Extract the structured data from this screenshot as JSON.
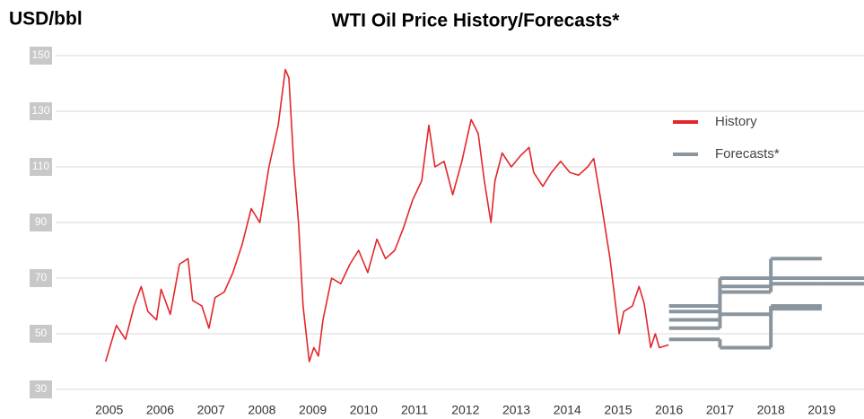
{
  "chart_data": {
    "type": "line",
    "title": "WTI Oil Price History/Forecasts*",
    "ylabel": "USD/bbl",
    "ylim": [
      30,
      150
    ],
    "yticks": [
      30,
      50,
      70,
      90,
      110,
      130,
      150
    ],
    "xlim": [
      2004.3,
      2019.83
    ],
    "xticks": [
      2005,
      2006,
      2007,
      2008,
      2009,
      2010,
      2011,
      2012,
      2013,
      2014,
      2015,
      2016,
      2017,
      2018,
      2019
    ],
    "grid": true,
    "legend": "upper right",
    "history": {
      "name": "History",
      "color": "#e3262b",
      "x": [
        2004.93,
        2005.14,
        2005.32,
        2005.49,
        2005.63,
        2005.76,
        2005.93,
        2006.02,
        2006.2,
        2006.38,
        2006.55,
        2006.64,
        2006.82,
        2006.96,
        2007.08,
        2007.26,
        2007.43,
        2007.61,
        2007.79,
        2007.96,
        2008.14,
        2008.32,
        2008.46,
        2008.53,
        2008.63,
        2008.72,
        2008.81,
        2008.93,
        2009.02,
        2009.11,
        2009.2,
        2009.37,
        2009.55,
        2009.73,
        2009.9,
        2010.08,
        2010.26,
        2010.43,
        2010.61,
        2010.78,
        2010.96,
        2011.14,
        2011.28,
        2011.4,
        2011.58,
        2011.75,
        2011.93,
        2012.11,
        2012.25,
        2012.37,
        2012.5,
        2012.58,
        2012.72,
        2012.9,
        2013.08,
        2013.25,
        2013.34,
        2013.52,
        2013.69,
        2013.87,
        2014.05,
        2014.22,
        2014.4,
        2014.52,
        2014.66,
        2014.84,
        2015.02,
        2015.11,
        2015.28,
        2015.41,
        2015.51,
        2015.64,
        2015.73,
        2015.81,
        2015.99
      ],
      "values": [
        40,
        53,
        48,
        60,
        67,
        58,
        55,
        66,
        57,
        75,
        77,
        62,
        60,
        52,
        63,
        65,
        72,
        82,
        95,
        90,
        110,
        125,
        145,
        142,
        110,
        90,
        60,
        40,
        45,
        42,
        55,
        70,
        68,
        75,
        80,
        72,
        84,
        77,
        80,
        88,
        98,
        105,
        125,
        110,
        112,
        100,
        112,
        127,
        122,
        105,
        90,
        105,
        115,
        110,
        114,
        117,
        108,
        103,
        108,
        112,
        108,
        107,
        110,
        113,
        98,
        77,
        50,
        58,
        60,
        67,
        61,
        45,
        50,
        45,
        46
      ]
    },
    "forecast_x": [
      2016,
      2017,
      2018,
      2019
    ],
    "forecasts": {
      "name": "Forecasts*",
      "color": "#8a959e",
      "series": [
        [
          60,
          70,
          77,
          null
        ],
        [
          58,
          67,
          70,
          70
        ],
        [
          55,
          65,
          68,
          68
        ],
        [
          52,
          57,
          60,
          null
        ],
        [
          48,
          45,
          59,
          null
        ]
      ]
    }
  }
}
